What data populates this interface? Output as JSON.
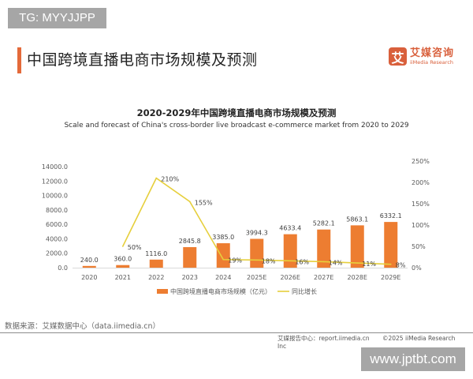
{
  "watermark_top": "TG: MYYJJPP",
  "watermark_bottom": "www.jptbt.com",
  "page_title": "中国跨境直播电商市场规模及预测",
  "logo": {
    "mark": "艾",
    "name_cn": "艾媒咨询",
    "name_en": "iiMedia Research"
  },
  "footer": {
    "source": "数据来源：艾媒数据中心（data.iimedia.cn）",
    "report_center": "艾媒报告中心：report.iimedia.cn",
    "copyright": "©2025  iiMedia Research  Inc"
  },
  "colors": {
    "bar": "#ed7d31",
    "line": "#e6cf3c",
    "accent": "#e46a3a"
  },
  "chart_data": {
    "type": "bar",
    "title": "2020-2029年中国跨境直播电商市场规模及预测",
    "subtitle": "Scale and forecast of China's cross-border live broadcast e-commerce market from 2020 to 2029",
    "categories": [
      "2020",
      "2021",
      "2022",
      "2023",
      "2024",
      "2025E",
      "2026E",
      "2027E",
      "2028E",
      "2029E"
    ],
    "series": [
      {
        "name": "中国跨境直播电商市场规模（亿元）",
        "type": "bar",
        "axis": "left",
        "values": [
          240.0,
          360.0,
          1116.0,
          2845.8,
          3385.0,
          3994.3,
          4633.4,
          5282.1,
          5863.1,
          6332.1
        ],
        "labels": [
          "240.0",
          "360.0",
          "1116.0",
          "2845.8",
          "3385.0",
          "3994.3",
          "4633.4",
          "5282.1",
          "5863.1",
          "6332.1"
        ]
      },
      {
        "name": "同比增长",
        "type": "line",
        "axis": "right",
        "values": [
          null,
          50,
          210,
          155,
          19,
          18,
          16,
          14,
          11,
          8
        ],
        "labels": [
          "",
          "50%",
          "210%",
          "155%",
          "19%",
          "18%",
          "16%",
          "14%",
          "11%",
          "8%"
        ]
      }
    ],
    "y_left": {
      "min": 0,
      "max": 14000,
      "ticks": [
        "0.0",
        "2000.0",
        "4000.0",
        "6000.0",
        "8000.0",
        "10000.0",
        "12000.0",
        "14000.0"
      ],
      "tick_values": [
        0,
        2000,
        4000,
        6000,
        8000,
        10000,
        12000,
        14000
      ]
    },
    "y_right": {
      "min": 0,
      "max": 250,
      "ticks": [
        "0%",
        "50%",
        "100%",
        "150%",
        "200%",
        "250%"
      ],
      "tick_values": [
        0,
        50,
        100,
        150,
        200,
        250
      ]
    },
    "grid": false,
    "legend": {
      "position": "bottom",
      "entries": [
        "中国跨境直播电商市场规模（亿元）",
        "同比增长"
      ]
    }
  }
}
